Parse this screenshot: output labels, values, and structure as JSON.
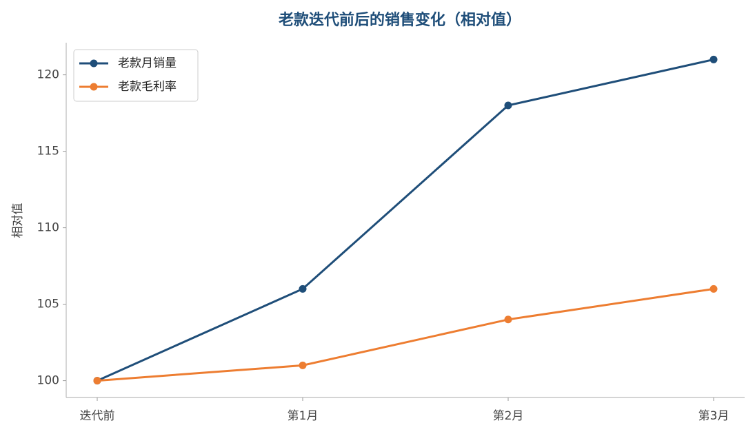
{
  "chart_data": {
    "type": "line",
    "title": "老款迭代前后的销售变化（相对值）",
    "ylabel": "相对值",
    "categories": [
      "迭代前",
      "第1月",
      "第2月",
      "第3月"
    ],
    "series": [
      {
        "name": "老款月销量",
        "color": "#1f4e79",
        "values": [
          100,
          106,
          118,
          121
        ]
      },
      {
        "name": "老款毛利率",
        "color": "#ed7d31",
        "values": [
          100,
          101,
          104,
          106
        ]
      }
    ],
    "ylim": [
      98.9,
      122.1
    ],
    "yticks": [
      100,
      105,
      110,
      115,
      120
    ],
    "grid": false,
    "legend": "upper left"
  }
}
